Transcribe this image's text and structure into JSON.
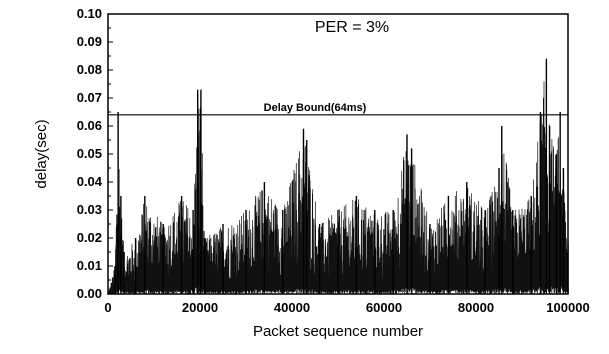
{
  "chart_data": {
    "type": "line",
    "title": "",
    "annotation": "PER = 3%",
    "xlabel": "Packet sequence number",
    "ylabel": "delay(sec)",
    "xlim": [
      0,
      100000
    ],
    "ylim": [
      0,
      0.1
    ],
    "xticks": [
      0,
      20000,
      40000,
      60000,
      80000,
      100000
    ],
    "yticks": [
      "0.00",
      "0.01",
      "0.02",
      "0.03",
      "0.04",
      "0.05",
      "0.06",
      "0.07",
      "0.08",
      "0.09",
      "0.10"
    ],
    "grid": false,
    "reference_line": {
      "label": "Delay Bound(64ms)",
      "value": 0.064
    },
    "series": [
      {
        "x": [
          0,
          1500,
          2200,
          2800,
          3500,
          6000,
          8000,
          12000,
          16000,
          18500,
          19500,
          20200,
          21000,
          25000,
          30000,
          34000,
          38000,
          42500,
          43200,
          46000,
          50000,
          54000,
          58000,
          62000,
          65000,
          66000,
          70000,
          74000,
          78000,
          82000,
          85000,
          85600,
          88000,
          92000,
          94000,
          95300,
          96000,
          97500,
          98300,
          99000,
          100000
        ],
        "y": [
          0.0,
          0.01,
          0.065,
          0.035,
          0.015,
          0.02,
          0.035,
          0.025,
          0.035,
          0.03,
          0.073,
          0.073,
          0.02,
          0.025,
          0.03,
          0.04,
          0.03,
          0.059,
          0.055,
          0.025,
          0.03,
          0.035,
          0.03,
          0.03,
          0.057,
          0.052,
          0.025,
          0.035,
          0.04,
          0.03,
          0.045,
          0.06,
          0.03,
          0.035,
          0.065,
          0.084,
          0.06,
          0.05,
          0.065,
          0.045,
          0.018
        ]
      }
    ]
  }
}
